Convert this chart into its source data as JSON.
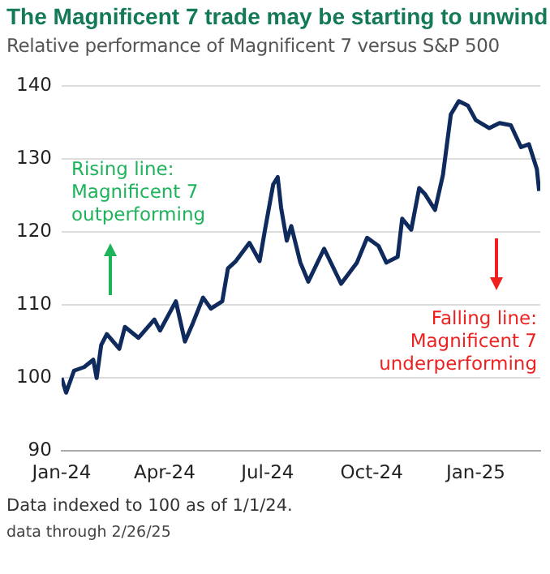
{
  "chart_data": {
    "type": "line",
    "title": "The Magnificent 7 trade may be starting to unwind",
    "subtitle": "Relative performance of Magnificent 7 versus S&P 500",
    "annotations": [
      "Rising line: Magnificent 7 outperforming",
      "Falling line: Magnificent 7 underperforming",
      "Data indexed to 100 as of 1/1/24.",
      "data through 2/26/25"
    ],
    "x": [
      "2024-01-01",
      "2024-01-05",
      "2024-01-12",
      "2024-01-21",
      "2024-01-29",
      "2024-02-01",
      "2024-02-05",
      "2024-02-10",
      "2024-02-21",
      "2024-02-26",
      "2024-03-09",
      "2024-03-23",
      "2024-03-28",
      "2024-04-11",
      "2024-04-19",
      "2024-04-26",
      "2024-05-05",
      "2024-05-12",
      "2024-05-22",
      "2024-05-27",
      "2024-06-03",
      "2024-06-15",
      "2024-06-24",
      "2024-06-29",
      "2024-07-06",
      "2024-07-10",
      "2024-07-13",
      "2024-07-18",
      "2024-07-22",
      "2024-07-30",
      "2024-08-06",
      "2024-08-20",
      "2024-09-04",
      "2024-09-18",
      "2024-09-27",
      "2024-10-07",
      "2024-10-14",
      "2024-10-24",
      "2024-10-28",
      "2024-11-05",
      "2024-11-12",
      "2024-11-17",
      "2024-11-26",
      "2024-12-03",
      "2024-12-10",
      "2024-12-17",
      "2024-12-25",
      "2025-01-01",
      "2025-01-13",
      "2025-01-22",
      "2025-02-01",
      "2025-02-10",
      "2025-02-17",
      "2025-02-24",
      "2025-02-26"
    ],
    "series": [
      {
        "color": "#0f2a5c",
        "values": [
          100,
          98,
          101,
          101.5,
          102.5,
          100,
          104.5,
          106,
          104,
          107,
          105.5,
          108,
          106.5,
          110.5,
          105,
          107.5,
          111,
          109.5,
          110.5,
          115,
          116,
          118.5,
          116,
          120.5,
          126.5,
          127.5,
          123.3,
          118.8,
          120.8,
          115.8,
          113.2,
          117.7,
          112.9,
          115.8,
          119.2,
          118.1,
          115.8,
          116.6,
          121.8,
          120.3,
          126,
          125.2,
          123,
          127.8,
          136.1,
          137.9,
          137.3,
          135.3,
          134.2,
          134.9,
          134.6,
          131.6,
          132,
          128.6,
          125.6
        ]
      }
    ],
    "xlim": [
      "2024-01-01",
      "2025-02-27"
    ],
    "xticks": [
      {
        "value": "2024-01-01",
        "label": "Jan-24"
      },
      {
        "value": "2024-04-01",
        "label": "Apr-24"
      },
      {
        "value": "2024-07-01",
        "label": "Jul-24"
      },
      {
        "value": "2024-10-01",
        "label": "Oct-24"
      },
      {
        "value": "2025-01-01",
        "label": "Jan-25"
      }
    ],
    "ylim": [
      90,
      140
    ],
    "yticks": [
      90,
      100,
      110,
      120,
      130,
      140
    ],
    "grid": "y",
    "marker": "none",
    "line_style": "solid",
    "legend": false
  }
}
